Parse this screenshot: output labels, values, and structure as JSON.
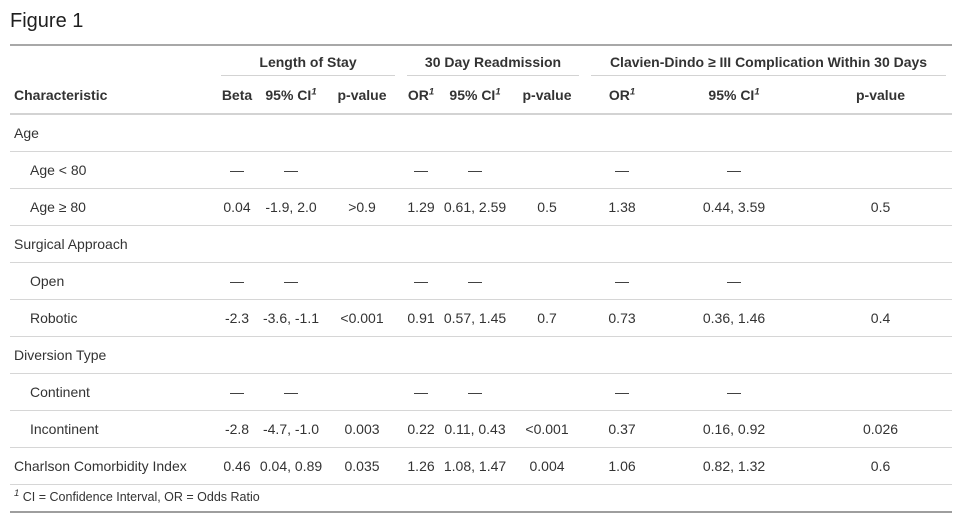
{
  "title": "Figure 1",
  "table": {
    "spanners": [
      {
        "label": "Length of Stay"
      },
      {
        "label": "30 Day Readmission"
      },
      {
        "label": "Clavien-Dindo ≥ III Complication Within 30 Days"
      }
    ],
    "columns": [
      {
        "label": "Characteristic",
        "sup": ""
      },
      {
        "label": "Beta",
        "sup": ""
      },
      {
        "label": "95% CI",
        "sup": "1"
      },
      {
        "label": "p-value",
        "sup": ""
      },
      {
        "label": "OR",
        "sup": "1"
      },
      {
        "label": "95% CI",
        "sup": "1"
      },
      {
        "label": "p-value",
        "sup": ""
      },
      {
        "label": "OR",
        "sup": "1"
      },
      {
        "label": "95% CI",
        "sup": "1"
      },
      {
        "label": "p-value",
        "sup": ""
      }
    ],
    "rows": [
      {
        "label": "Age",
        "group": true,
        "indent": false,
        "cells": [
          "",
          "",
          "",
          "",
          "",
          "",
          "",
          "",
          ""
        ]
      },
      {
        "label": "Age < 80",
        "group": false,
        "indent": true,
        "cells": [
          "—",
          "—",
          "",
          "—",
          "—",
          "",
          "—",
          "—",
          ""
        ]
      },
      {
        "label": "Age ≥ 80",
        "group": false,
        "indent": true,
        "cells": [
          "0.04",
          "-1.9, 2.0",
          ">0.9",
          "1.29",
          "0.61, 2.59",
          "0.5",
          "1.38",
          "0.44, 3.59",
          "0.5"
        ]
      },
      {
        "label": "Surgical Approach",
        "group": true,
        "indent": false,
        "cells": [
          "",
          "",
          "",
          "",
          "",
          "",
          "",
          "",
          ""
        ]
      },
      {
        "label": "Open",
        "group": false,
        "indent": true,
        "cells": [
          "—",
          "—",
          "",
          "—",
          "—",
          "",
          "—",
          "—",
          ""
        ]
      },
      {
        "label": "Robotic",
        "group": false,
        "indent": true,
        "cells": [
          "-2.3",
          "-3.6, -1.1",
          "<0.001",
          "0.91",
          "0.57, 1.45",
          "0.7",
          "0.73",
          "0.36, 1.46",
          "0.4"
        ]
      },
      {
        "label": "Diversion Type",
        "group": true,
        "indent": false,
        "cells": [
          "",
          "",
          "",
          "",
          "",
          "",
          "",
          "",
          ""
        ]
      },
      {
        "label": "Continent",
        "group": false,
        "indent": true,
        "cells": [
          "—",
          "—",
          "",
          "—",
          "—",
          "",
          "—",
          "—",
          ""
        ]
      },
      {
        "label": "Incontinent",
        "group": false,
        "indent": true,
        "cells": [
          "-2.8",
          "-4.7, -1.0",
          "0.003",
          "0.22",
          "0.11, 0.43",
          "<0.001",
          "0.37",
          "0.16, 0.92",
          "0.026"
        ]
      },
      {
        "label": "Charlson Comorbidity Index",
        "group": false,
        "indent": false,
        "cells": [
          "0.46",
          "0.04, 0.89",
          "0.035",
          "1.26",
          "1.08, 1.47",
          "0.004",
          "1.06",
          "0.82, 1.32",
          "0.6"
        ]
      }
    ],
    "footnote": {
      "marker": "1",
      "text": "CI = Confidence Interval, OR = Odds Ratio"
    }
  },
  "colors": {
    "text": "#333333",
    "border_strong": "#a8a8a8",
    "border_light": "#d3d3d3"
  }
}
